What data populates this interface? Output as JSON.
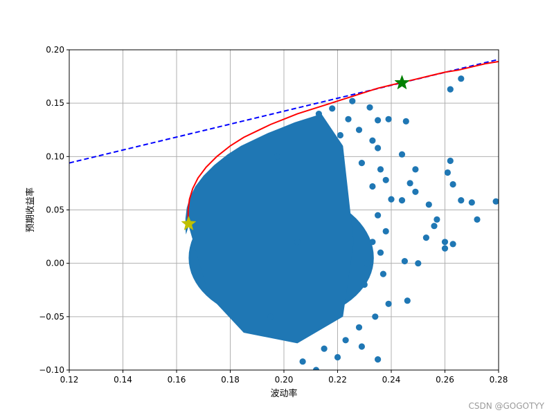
{
  "chart_data": {
    "type": "scatter",
    "xlabel": "波动率",
    "ylabel": "预期收益率",
    "xlim": [
      0.12,
      0.28
    ],
    "ylim": [
      -0.1,
      0.2
    ],
    "xticks": [
      "0.12",
      "0.14",
      "0.16",
      "0.18",
      "0.20",
      "0.22",
      "0.24",
      "0.26",
      "0.28"
    ],
    "yticks": [
      "−0.10",
      "−0.05",
      "0.00",
      "0.05",
      "0.10",
      "0.15",
      "0.20"
    ],
    "grid": true,
    "colors": {
      "scatter": "#1f77b4",
      "frontier": "#ff0000",
      "capital_market_line": "#0000ff",
      "min_volatility_star": "#bfbf00",
      "max_sharpe_star": "#008000"
    },
    "scatter_cloud": {
      "description_points": [
        {
          "x": 0.165,
          "y": 0.04
        },
        {
          "x": 0.1975,
          "y": 0.1
        },
        {
          "x": 0.205,
          "y": 0.02
        },
        {
          "x": 0.195,
          "y": -0.05
        }
      ]
    },
    "scatter_outliers": [
      {
        "x": 0.2255,
        "y": 0.152
      },
      {
        "x": 0.232,
        "y": 0.146
      },
      {
        "x": 0.2455,
        "y": 0.133
      },
      {
        "x": 0.262,
        "y": 0.163
      },
      {
        "x": 0.266,
        "y": 0.173
      },
      {
        "x": 0.244,
        "y": 0.102
      },
      {
        "x": 0.249,
        "y": 0.088
      },
      {
        "x": 0.262,
        "y": 0.096
      },
      {
        "x": 0.261,
        "y": 0.085
      },
      {
        "x": 0.263,
        "y": 0.074
      },
      {
        "x": 0.266,
        "y": 0.059
      },
      {
        "x": 0.27,
        "y": 0.057
      },
      {
        "x": 0.279,
        "y": 0.058
      },
      {
        "x": 0.272,
        "y": 0.041
      },
      {
        "x": 0.254,
        "y": 0.055
      },
      {
        "x": 0.257,
        "y": 0.041
      },
      {
        "x": 0.256,
        "y": 0.035
      },
      {
        "x": 0.253,
        "y": 0.024
      },
      {
        "x": 0.26,
        "y": 0.014
      },
      {
        "x": 0.263,
        "y": 0.018
      },
      {
        "x": 0.25,
        "y": 0.0
      },
      {
        "x": 0.245,
        "y": 0.002
      },
      {
        "x": 0.244,
        "y": 0.059
      },
      {
        "x": 0.249,
        "y": 0.067
      },
      {
        "x": 0.247,
        "y": 0.075
      },
      {
        "x": 0.24,
        "y": 0.06
      },
      {
        "x": 0.246,
        "y": -0.035
      },
      {
        "x": 0.239,
        "y": -0.038
      },
      {
        "x": 0.235,
        "y": -0.09
      },
      {
        "x": 0.223,
        "y": -0.072
      },
      {
        "x": 0.229,
        "y": -0.078
      },
      {
        "x": 0.215,
        "y": -0.08
      },
      {
        "x": 0.207,
        "y": -0.092
      },
      {
        "x": 0.212,
        "y": -0.1
      },
      {
        "x": 0.22,
        "y": -0.088
      },
      {
        "x": 0.221,
        "y": 0.12
      },
      {
        "x": 0.228,
        "y": 0.125
      },
      {
        "x": 0.233,
        "y": 0.115
      },
      {
        "x": 0.235,
        "y": 0.108
      },
      {
        "x": 0.224,
        "y": 0.135
      },
      {
        "x": 0.218,
        "y": 0.145
      },
      {
        "x": 0.213,
        "y": 0.14
      },
      {
        "x": 0.239,
        "y": 0.135
      },
      {
        "x": 0.235,
        "y": 0.134
      },
      {
        "x": 0.229,
        "y": 0.094
      },
      {
        "x": 0.236,
        "y": 0.088
      },
      {
        "x": 0.238,
        "y": 0.078
      },
      {
        "x": 0.233,
        "y": 0.072
      },
      {
        "x": 0.235,
        "y": 0.045
      },
      {
        "x": 0.238,
        "y": 0.03
      },
      {
        "x": 0.233,
        "y": 0.02
      },
      {
        "x": 0.236,
        "y": 0.01
      },
      {
        "x": 0.231,
        "y": 0.0
      },
      {
        "x": 0.237,
        "y": -0.01
      },
      {
        "x": 0.23,
        "y": -0.02
      },
      {
        "x": 0.234,
        "y": -0.05
      },
      {
        "x": 0.228,
        "y": -0.06
      },
      {
        "x": 0.26,
        "y": 0.02
      }
    ],
    "efficient_frontier": {
      "x": [
        0.1645,
        0.1643,
        0.1643,
        0.1648,
        0.166,
        0.168,
        0.171,
        0.175,
        0.18,
        0.185,
        0.19,
        0.195,
        0.2,
        0.205,
        0.21,
        0.215,
        0.22,
        0.225,
        0.23,
        0.235,
        0.24,
        0.245,
        0.25,
        0.255,
        0.26,
        0.265,
        0.27,
        0.275,
        0.28
      ],
      "y": [
        0.035,
        0.04,
        0.05,
        0.06,
        0.07,
        0.08,
        0.09,
        0.1,
        0.11,
        0.118,
        0.124,
        0.13,
        0.135,
        0.14,
        0.144,
        0.148,
        0.152,
        0.156,
        0.16,
        0.164,
        0.167,
        0.17,
        0.173,
        0.176,
        0.179,
        0.181,
        0.184,
        0.187,
        0.189
      ]
    },
    "capital_market_line": {
      "x": [
        0.12,
        0.28
      ],
      "y": [
        0.094,
        0.191
      ]
    },
    "min_volatility_point": {
      "x": 0.1645,
      "y": 0.037
    },
    "max_sharpe_point": {
      "x": 0.244,
      "y": 0.169
    }
  },
  "watermark": "CSDN @GOGOTYY"
}
